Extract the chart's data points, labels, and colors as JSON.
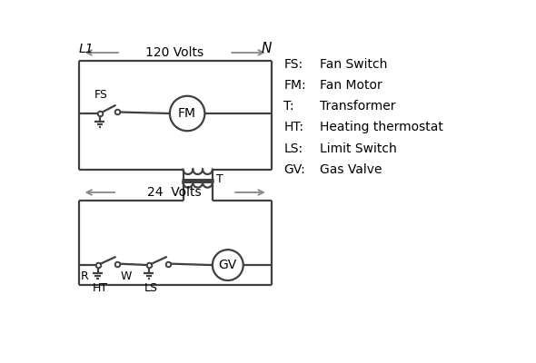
{
  "background_color": "#ffffff",
  "line_color": "#404040",
  "arrow_color": "#888888",
  "text_color": "#000000",
  "legend": {
    "FS": "Fan Switch",
    "FM": "Fan Motor",
    "T": "Transformer",
    "HT": "Heating thermostat",
    "LS": "Limit Switch",
    "GV": "Gas Valve"
  },
  "L1_label": "L1",
  "N_label": "N",
  "volts120_label": "120 Volts",
  "volts24_label": "24  Volts",
  "T_label": "T",
  "R_label": "R",
  "W_label": "W",
  "FS_label": "FS",
  "HT_label": "HT",
  "LS_label": "LS"
}
